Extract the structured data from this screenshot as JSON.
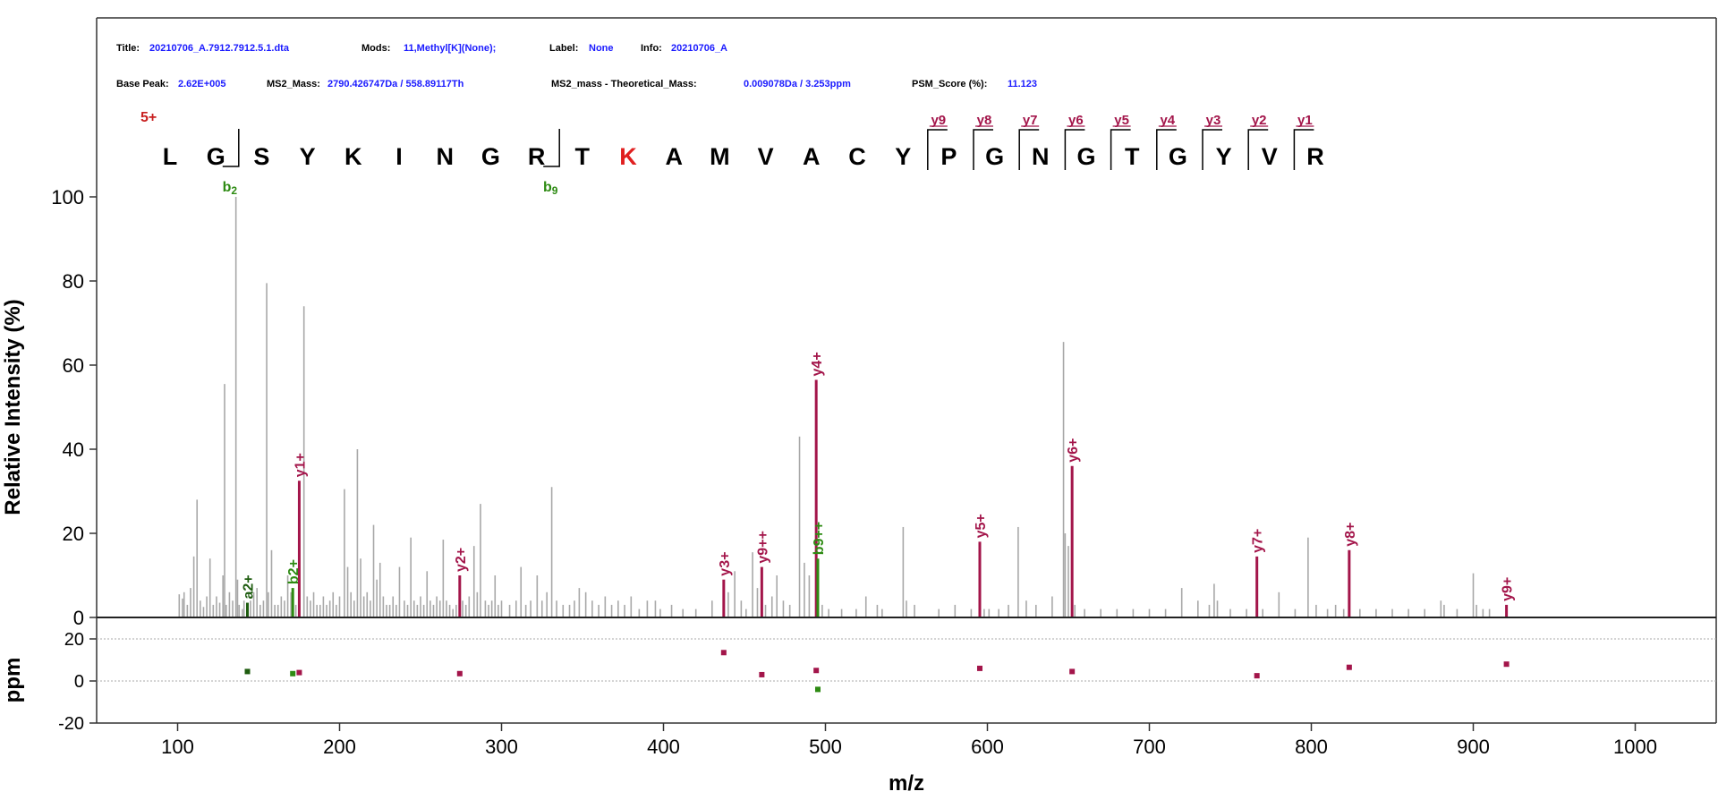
{
  "header": {
    "title_key": "Title:",
    "title_val": "20210706_A.7912.7912.5.1.dta",
    "mods_key": "Mods:",
    "mods_val": "11,Methyl[K](None);",
    "label_key": "Label:",
    "label_val": "None",
    "info_key": "Info:",
    "info_val": "20210706_A",
    "basepeak_key": "Base Peak:",
    "basepeak_val": "2.62E+005",
    "ms2mass_key": "MS2_Mass:",
    "ms2mass_val": "2790.426747Da / 558.89117Th",
    "delta_key": "MS2_mass - Theoretical_Mass:",
    "delta_val": "0.009078Da / 3.253ppm",
    "psm_key": "PSM_Score (%):",
    "psm_val": "11.123"
  },
  "peptide": {
    "charge": "5+",
    "residues": [
      "L",
      "G",
      "S",
      "Y",
      "K",
      "I",
      "N",
      "G",
      "R",
      "T",
      "K",
      "A",
      "M",
      "V",
      "A",
      "C",
      "Y",
      "P",
      "G",
      "N",
      "G",
      "T",
      "G",
      "Y",
      "V",
      "R"
    ],
    "modified_index": 10,
    "b_ions": [
      {
        "after": 1,
        "label": "b",
        "sub": "2"
      },
      {
        "after": 8,
        "label": "b",
        "sub": "9"
      }
    ],
    "y_ions": [
      {
        "before": 17,
        "label": "y9"
      },
      {
        "before": 18,
        "label": "y8"
      },
      {
        "before": 19,
        "label": "y7"
      },
      {
        "before": 20,
        "label": "y6"
      },
      {
        "before": 21,
        "label": "y5"
      },
      {
        "before": 22,
        "label": "y4"
      },
      {
        "before": 23,
        "label": "y3"
      },
      {
        "before": 24,
        "label": "y2"
      },
      {
        "before": 25,
        "label": "y1"
      }
    ]
  },
  "colors": {
    "y_ion": "#a3154a",
    "b_ion": "#2d8a12",
    "a_ion": "#1e5c0f",
    "unmatched": "#a8a8a8",
    "modified": "#e02020"
  },
  "chart_data": {
    "type": "bar",
    "xlabel": "m/z",
    "ylabel": "Relative Intensity (%)",
    "ylabel2": "ppm",
    "xlim": [
      50,
      1050
    ],
    "ylim": [
      0,
      110
    ],
    "ppm_lim": [
      -20,
      20
    ],
    "x_ticks": [
      100,
      200,
      300,
      400,
      500,
      600,
      700,
      800,
      900,
      1000
    ],
    "y_ticks": [
      0,
      20,
      40,
      60,
      80,
      100
    ],
    "ppm_ticks": [
      -20,
      0,
      20
    ],
    "annotated_peaks": [
      {
        "label": "a2+",
        "mz": 143.1,
        "intensity": 3.5,
        "ion": "a",
        "ppm": 4.5
      },
      {
        "label": "b2+",
        "mz": 171.1,
        "intensity": 7.0,
        "ion": "b",
        "ppm": 3.5
      },
      {
        "label": "y1+",
        "mz": 175.1,
        "intensity": 32.5,
        "ion": "y",
        "ppm": 4.0
      },
      {
        "label": "y2+",
        "mz": 274.2,
        "intensity": 10.0,
        "ion": "y",
        "ppm": 3.5
      },
      {
        "label": "y3+",
        "mz": 437.2,
        "intensity": 9.0,
        "ion": "y",
        "ppm": 13.5
      },
      {
        "label": "y9++",
        "mz": 460.7,
        "intensity": 12.0,
        "ion": "y",
        "ppm": 3.0
      },
      {
        "label": "y4+",
        "mz": 494.3,
        "intensity": 56.5,
        "ion": "y",
        "ppm": 5.0
      },
      {
        "label": "b9++",
        "mz": 495.3,
        "intensity": 14.0,
        "ion": "b",
        "ppm": -4.0
      },
      {
        "label": "y5+",
        "mz": 595.3,
        "intensity": 18.0,
        "ion": "y",
        "ppm": 6.0
      },
      {
        "label": "y6+",
        "mz": 652.3,
        "intensity": 36.0,
        "ion": "y",
        "ppm": 4.5
      },
      {
        "label": "y7+",
        "mz": 766.4,
        "intensity": 14.5,
        "ion": "y",
        "ppm": 2.5
      },
      {
        "label": "y8+",
        "mz": 823.4,
        "intensity": 16.0,
        "ion": "y",
        "ppm": 6.5
      },
      {
        "label": "y9+",
        "mz": 920.5,
        "intensity": 3.0,
        "ion": "y",
        "ppm": 8.0
      }
    ],
    "unmatched_peaks": [
      [
        101,
        5.5
      ],
      [
        103,
        4.5
      ],
      [
        104,
        6
      ],
      [
        106,
        3
      ],
      [
        108,
        7
      ],
      [
        110,
        14.5
      ],
      [
        112,
        28
      ],
      [
        114,
        4
      ],
      [
        116,
        2.5
      ],
      [
        118,
        5
      ],
      [
        120,
        14
      ],
      [
        122,
        3
      ],
      [
        124,
        5
      ],
      [
        126,
        3.5
      ],
      [
        128,
        10
      ],
      [
        129,
        55.5
      ],
      [
        130,
        3
      ],
      [
        132,
        6
      ],
      [
        134,
        4
      ],
      [
        136,
        100
      ],
      [
        137,
        9
      ],
      [
        138,
        3
      ],
      [
        140,
        2
      ],
      [
        141,
        4
      ],
      [
        145,
        4
      ],
      [
        147,
        6
      ],
      [
        149,
        7
      ],
      [
        151,
        3
      ],
      [
        153,
        4
      ],
      [
        155,
        79.5
      ],
      [
        156,
        6
      ],
      [
        158,
        16
      ],
      [
        160,
        3
      ],
      [
        162,
        3
      ],
      [
        164,
        5
      ],
      [
        166,
        4
      ],
      [
        168,
        10
      ],
      [
        170,
        6
      ],
      [
        173,
        3
      ],
      [
        178,
        74
      ],
      [
        180,
        5
      ],
      [
        182,
        4
      ],
      [
        184,
        6
      ],
      [
        186,
        3
      ],
      [
        188,
        3
      ],
      [
        190,
        5
      ],
      [
        192,
        3
      ],
      [
        194,
        4
      ],
      [
        196,
        6
      ],
      [
        198,
        3
      ],
      [
        200,
        5
      ],
      [
        203,
        30.5
      ],
      [
        205,
        12
      ],
      [
        207,
        6
      ],
      [
        209,
        4
      ],
      [
        211,
        40
      ],
      [
        213,
        14
      ],
      [
        215,
        5
      ],
      [
        217,
        6
      ],
      [
        219,
        4
      ],
      [
        221,
        22
      ],
      [
        223,
        9
      ],
      [
        225,
        13
      ],
      [
        227,
        5
      ],
      [
        229,
        3
      ],
      [
        231,
        3
      ],
      [
        233,
        5
      ],
      [
        235,
        3
      ],
      [
        237,
        12
      ],
      [
        240,
        4
      ],
      [
        242,
        3
      ],
      [
        244,
        19
      ],
      [
        246,
        4
      ],
      [
        248,
        3
      ],
      [
        250,
        5
      ],
      [
        252,
        3
      ],
      [
        254,
        11
      ],
      [
        256,
        4
      ],
      [
        258,
        3
      ],
      [
        260,
        5
      ],
      [
        262,
        4
      ],
      [
        264,
        18.5
      ],
      [
        266,
        4
      ],
      [
        268,
        3
      ],
      [
        270,
        2
      ],
      [
        272,
        3
      ],
      [
        276,
        4
      ],
      [
        278,
        3
      ],
      [
        280,
        5
      ],
      [
        283,
        17
      ],
      [
        285,
        6
      ],
      [
        287,
        27
      ],
      [
        290,
        4
      ],
      [
        292,
        3
      ],
      [
        294,
        4
      ],
      [
        296,
        10
      ],
      [
        298,
        3
      ],
      [
        300,
        4
      ],
      [
        305,
        3
      ],
      [
        309,
        4
      ],
      [
        312,
        12
      ],
      [
        315,
        3
      ],
      [
        318,
        4
      ],
      [
        322,
        10
      ],
      [
        325,
        4
      ],
      [
        328,
        6
      ],
      [
        331,
        31
      ],
      [
        334,
        4
      ],
      [
        338,
        3
      ],
      [
        342,
        3
      ],
      [
        345,
        4
      ],
      [
        348,
        7
      ],
      [
        352,
        6
      ],
      [
        356,
        4
      ],
      [
        360,
        3
      ],
      [
        364,
        5
      ],
      [
        368,
        3
      ],
      [
        372,
        4
      ],
      [
        376,
        3
      ],
      [
        380,
        5
      ],
      [
        385,
        2
      ],
      [
        390,
        4
      ],
      [
        395,
        4
      ],
      [
        398,
        2
      ],
      [
        405,
        3
      ],
      [
        412,
        2
      ],
      [
        420,
        2
      ],
      [
        430,
        4
      ],
      [
        440,
        6
      ],
      [
        444,
        11
      ],
      [
        448,
        4
      ],
      [
        451,
        2
      ],
      [
        455,
        15.5
      ],
      [
        458,
        7
      ],
      [
        463,
        3
      ],
      [
        467,
        5
      ],
      [
        470,
        10
      ],
      [
        474,
        4
      ],
      [
        478,
        3
      ],
      [
        484,
        43
      ],
      [
        487,
        13
      ],
      [
        490,
        10
      ],
      [
        498,
        3
      ],
      [
        502,
        2
      ],
      [
        510,
        2
      ],
      [
        519,
        2
      ],
      [
        525,
        5
      ],
      [
        532,
        3
      ],
      [
        535,
        2
      ],
      [
        548,
        21.5
      ],
      [
        550,
        4
      ],
      [
        555,
        3
      ],
      [
        570,
        2
      ],
      [
        580,
        3
      ],
      [
        590,
        2
      ],
      [
        598,
        2
      ],
      [
        601,
        2
      ],
      [
        607,
        2
      ],
      [
        613,
        3
      ],
      [
        619,
        21.5
      ],
      [
        624,
        4
      ],
      [
        630,
        3
      ],
      [
        640,
        5
      ],
      [
        647,
        65.5
      ],
      [
        648,
        20
      ],
      [
        650,
        17
      ],
      [
        654,
        3
      ],
      [
        660,
        2
      ],
      [
        670,
        2
      ],
      [
        680,
        2
      ],
      [
        690,
        2
      ],
      [
        700,
        2
      ],
      [
        710,
        2
      ],
      [
        720,
        7
      ],
      [
        730,
        4
      ],
      [
        737,
        3
      ],
      [
        740,
        8
      ],
      [
        742,
        4
      ],
      [
        750,
        2
      ],
      [
        760,
        2
      ],
      [
        770,
        2
      ],
      [
        780,
        6
      ],
      [
        790,
        2
      ],
      [
        798,
        19
      ],
      [
        803,
        3
      ],
      [
        810,
        2
      ],
      [
        815,
        3
      ],
      [
        820,
        2
      ],
      [
        830,
        2
      ],
      [
        840,
        2
      ],
      [
        850,
        2
      ],
      [
        860,
        2
      ],
      [
        870,
        2
      ],
      [
        880,
        4
      ],
      [
        882,
        3
      ],
      [
        890,
        2
      ],
      [
        900,
        10.5
      ],
      [
        902,
        3
      ],
      [
        906,
        2
      ],
      [
        910,
        2
      ]
    ]
  }
}
